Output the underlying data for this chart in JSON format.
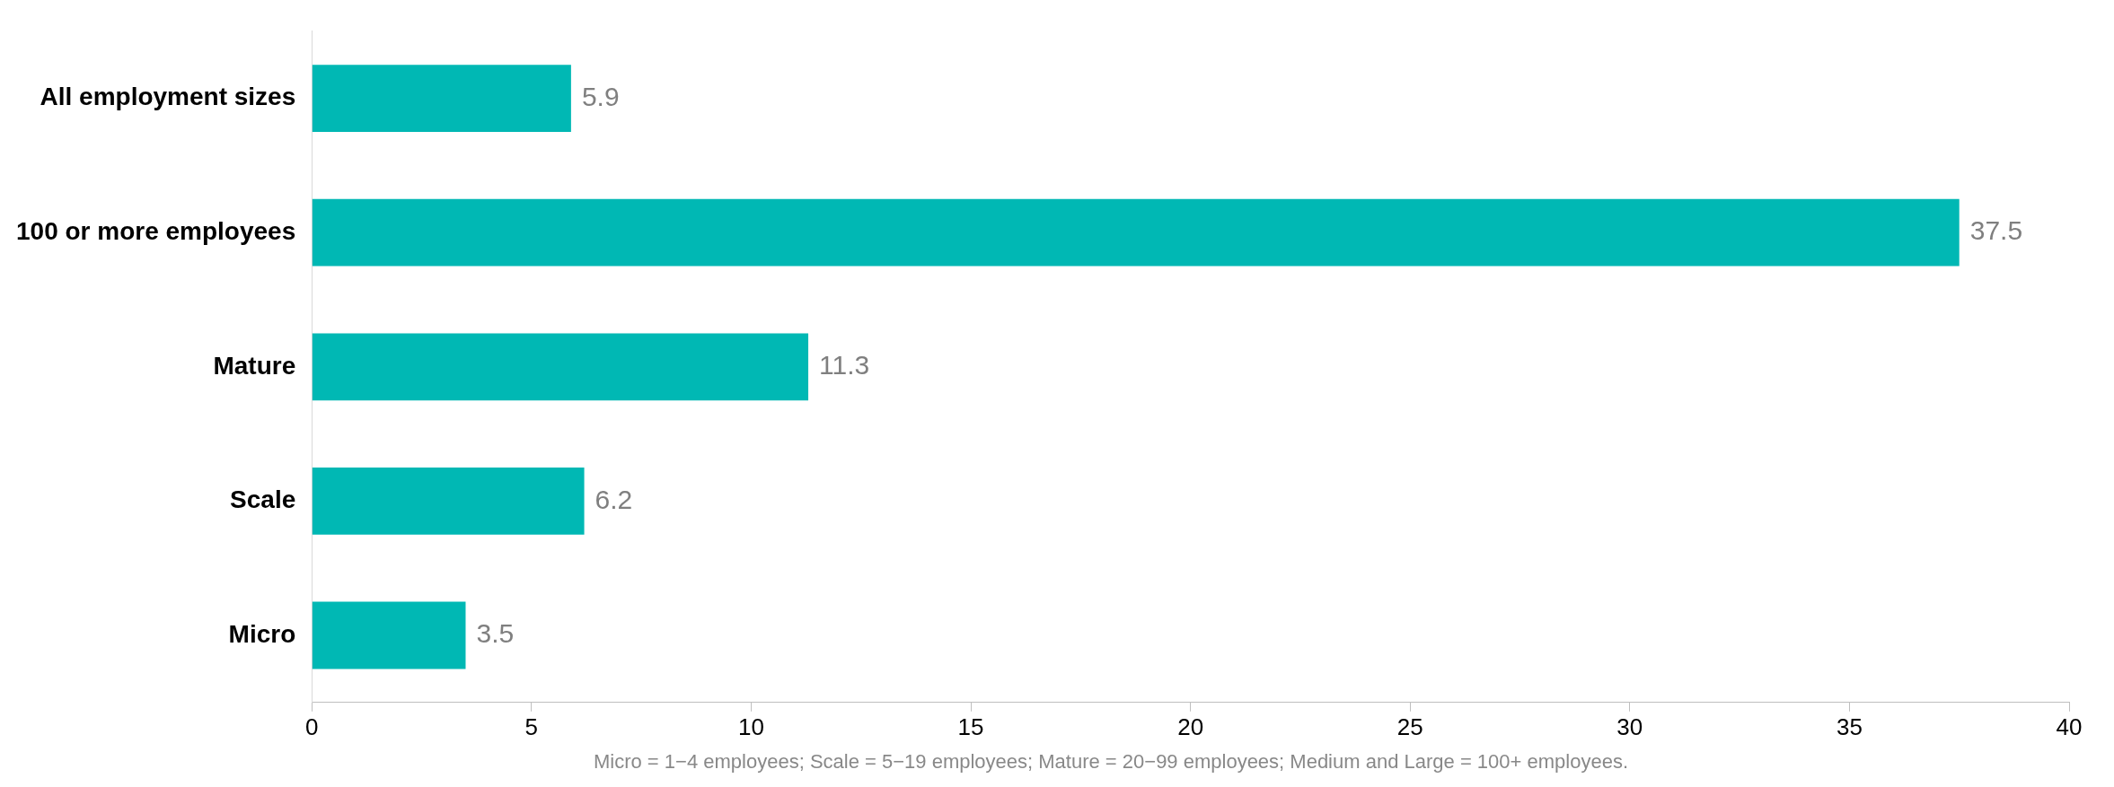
{
  "chart_data": {
    "type": "bar",
    "orientation": "horizontal",
    "categories": [
      "All employment sizes",
      "100 or more employees",
      "Mature",
      "Scale",
      "Micro"
    ],
    "values": [
      5.9,
      37.5,
      11.3,
      6.2,
      3.5
    ],
    "color": "#00b8b4",
    "xlim": [
      0,
      40
    ],
    "xticks": [
      0,
      5,
      10,
      15,
      20,
      25,
      30,
      35,
      40
    ],
    "data_labels": true,
    "grid": false,
    "legend": false,
    "annotations": [
      "Micro = 1−4 employees; Scale = 5−19 employees; Mature = 20−99 employees; Medium and Large = 100+ employees."
    ]
  }
}
